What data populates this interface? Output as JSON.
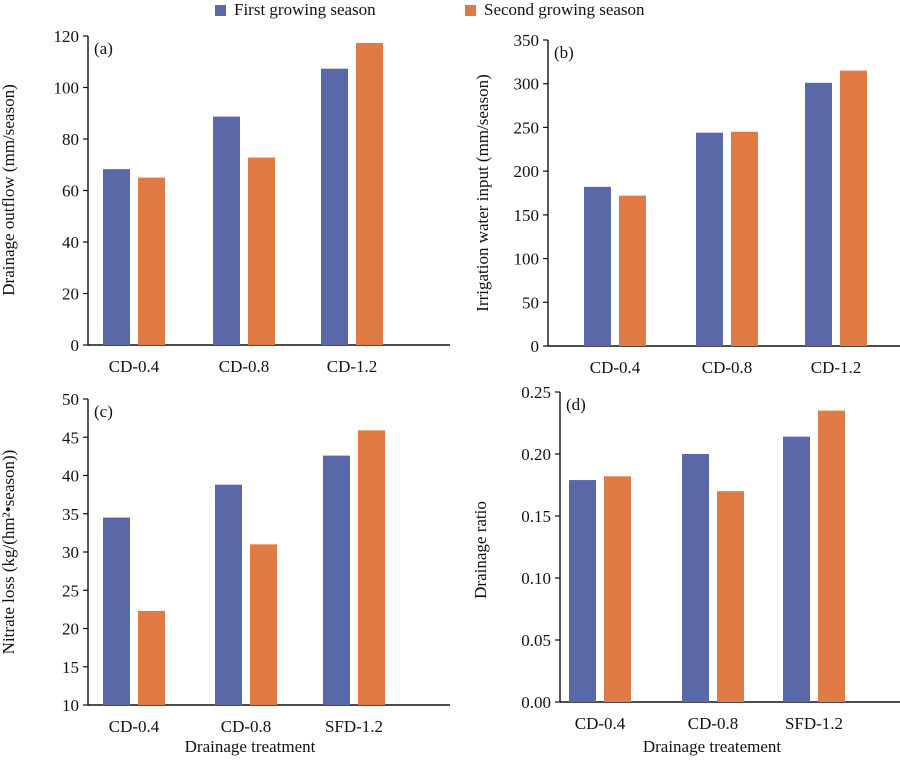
{
  "legend": {
    "series": [
      {
        "name": "First growing season",
        "color": "#5B68A8"
      },
      {
        "name": "Second growing season",
        "color": "#E07B45"
      }
    ]
  },
  "chart_data": [
    {
      "panel": "(a)",
      "type": "bar",
      "ylabel": "Drainage outflow (mm/season)",
      "xlabel": "",
      "categories": [
        "CD-0.4",
        "CD-0.8",
        "CD-1.2"
      ],
      "ylim": [
        0,
        120
      ],
      "yticks": [
        "0",
        "20",
        "40",
        "60",
        "80",
        "100",
        "120"
      ],
      "series": [
        {
          "name": "First growing season",
          "values": [
            68.3,
            88.7,
            107.3
          ]
        },
        {
          "name": "Second growing season",
          "values": [
            65.0,
            72.8,
            117.3
          ]
        }
      ]
    },
    {
      "panel": "(b)",
      "type": "bar",
      "ylabel": "Irrigation water input (mm/season)",
      "xlabel": "",
      "categories": [
        "CD-0.4",
        "CD-0.8",
        "CD-1.2"
      ],
      "ylim": [
        0,
        350
      ],
      "yticks": [
        "0",
        "50",
        "100",
        "150",
        "200",
        "250",
        "300",
        "350"
      ],
      "series": [
        {
          "name": "First growing season",
          "values": [
            182,
            244,
            301
          ]
        },
        {
          "name": "Second growing season",
          "values": [
            172,
            245,
            315
          ]
        }
      ]
    },
    {
      "panel": "(c)",
      "type": "bar",
      "ylabel": "Nitrate loss (kg/(hm²•season))",
      "xlabel": "Drainage treatment",
      "categories": [
        "CD-0.4",
        "CD-0.8",
        "SFD-1.2"
      ],
      "ylim": [
        10,
        50
      ],
      "yticks": [
        "10",
        "15",
        "20",
        "25",
        "30",
        "35",
        "40",
        "45",
        "50"
      ],
      "series": [
        {
          "name": "First growing season",
          "values": [
            34.5,
            38.8,
            42.6
          ]
        },
        {
          "name": "Second growing season",
          "values": [
            22.3,
            31.0,
            45.9
          ]
        }
      ]
    },
    {
      "panel": "(d)",
      "type": "bar",
      "ylabel": "Drainage ratio",
      "xlabel": "Drainage treatement",
      "categories": [
        "CD-0.4",
        "CD-0.8",
        "SFD-1.2"
      ],
      "ylim": [
        0,
        0.25
      ],
      "yticks": [
        "0.00",
        "0.05",
        "0.10",
        "0.15",
        "0.20",
        "0.25"
      ],
      "series": [
        {
          "name": "First growing season",
          "values": [
            0.179,
            0.2,
            0.214
          ]
        },
        {
          "name": "Second growing season",
          "values": [
            0.182,
            0.17,
            0.235
          ]
        }
      ]
    }
  ]
}
